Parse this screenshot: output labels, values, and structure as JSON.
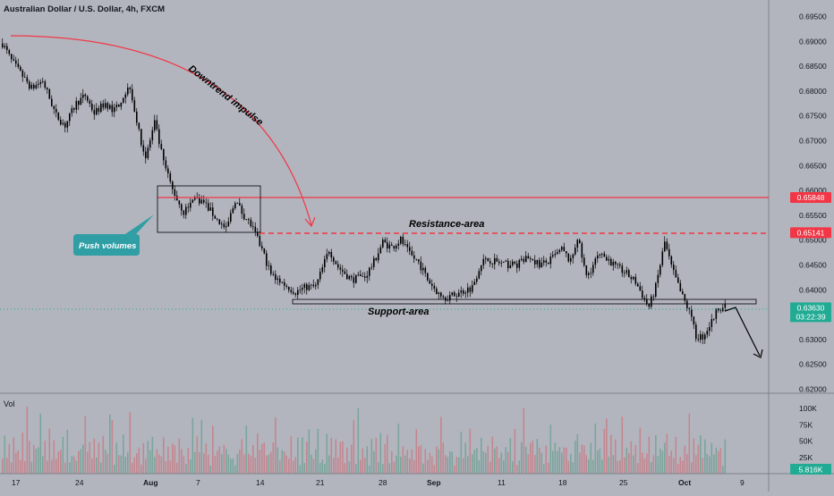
{
  "header": {
    "symbol_title": "Australian Dollar / U.S. Dollar, 4h, FXCM"
  },
  "volume_panel": {
    "label": "Vol",
    "current_value": "5.816K"
  },
  "price_axis": {
    "ticks": [
      "0.69500",
      "0.69000",
      "0.68500",
      "0.68000",
      "0.67500",
      "0.67000",
      "0.66500",
      "0.66000",
      "0.65500",
      "0.65000",
      "0.64500",
      "0.64000",
      "0.63500",
      "0.63000",
      "0.62500",
      "0.62000"
    ],
    "tick_values": [
      0.695,
      0.69,
      0.685,
      0.68,
      0.675,
      0.67,
      0.665,
      0.66,
      0.655,
      0.65,
      0.645,
      0.64,
      0.635,
      0.63,
      0.625,
      0.62
    ],
    "range": [
      0.6195,
      0.6965
    ],
    "badges": [
      {
        "label": "0.65848",
        "value": 0.65848,
        "color": "#f23645"
      },
      {
        "label": "0.65141",
        "value": 0.65141,
        "color": "#f23645"
      },
      {
        "label": "0.63630",
        "value": 0.6363,
        "color": "#22ab94",
        "sublabel": "03:22:39"
      }
    ]
  },
  "volume_axis": {
    "ticks": [
      "100K",
      "75K",
      "50K",
      "25K"
    ],
    "tick_values": [
      100,
      75,
      50,
      25
    ],
    "max": 107
  },
  "time_axis": {
    "labels": [
      "17",
      "24",
      "Aug",
      "7",
      "14",
      "21",
      "28",
      "Sep",
      "11",
      "18",
      "25",
      "Oct",
      "9"
    ],
    "bold": [
      "Aug",
      "Sep",
      "Oct"
    ]
  },
  "annotations": {
    "downtrend": "Downtrend impulse",
    "resistance": "Resistance-area",
    "support": "Support-area",
    "push": "Push volumes"
  },
  "colors": {
    "background": "#b2b5be",
    "up": "#22ab94",
    "down": "#f23645",
    "candle": "#000000",
    "level_line": "#f23645",
    "callout": "#2f9ea5",
    "vol_up": "#7aa59c",
    "vol_down": "#c4868f"
  },
  "chart_data": {
    "type": "candlestick",
    "title": "Australian Dollar / U.S. Dollar, 4h, FXCM",
    "x_labels": [
      "17",
      "24",
      "Aug",
      "7",
      "14",
      "21",
      "28",
      "Sep",
      "11",
      "18",
      "25",
      "Oct",
      "9"
    ],
    "price_range": [
      0.62,
      0.695
    ],
    "levels": {
      "resistance_solid": 0.65848,
      "resistance_dashed": 0.65141,
      "support": 0.6381,
      "last": 0.6363
    },
    "path_anchors": [
      [
        0,
        0.6895
      ],
      [
        4,
        0.686
      ],
      [
        8,
        0.6835
      ],
      [
        13,
        0.6805
      ],
      [
        18,
        0.682
      ],
      [
        24,
        0.675
      ],
      [
        28,
        0.673
      ],
      [
        33,
        0.6775
      ],
      [
        37,
        0.679
      ],
      [
        41,
        0.6755
      ],
      [
        46,
        0.6775
      ],
      [
        50,
        0.676
      ],
      [
        54,
        0.679
      ],
      [
        57,
        0.681
      ],
      [
        61,
        0.6715
      ],
      [
        64,
        0.6665
      ],
      [
        68,
        0.6735
      ],
      [
        72,
        0.6655
      ],
      [
        76,
        0.66
      ],
      [
        81,
        0.6555
      ],
      [
        86,
        0.6585
      ],
      [
        90,
        0.6575
      ],
      [
        96,
        0.654
      ],
      [
        100,
        0.652
      ],
      [
        104,
        0.658
      ],
      [
        107,
        0.6555
      ],
      [
        111,
        0.653
      ],
      [
        116,
        0.648
      ],
      [
        120,
        0.643
      ],
      [
        126,
        0.641
      ],
      [
        131,
        0.6395
      ],
      [
        136,
        0.6405
      ],
      [
        140,
        0.6405
      ],
      [
        146,
        0.648
      ],
      [
        150,
        0.6445
      ],
      [
        156,
        0.642
      ],
      [
        162,
        0.6425
      ],
      [
        166,
        0.6455
      ],
      [
        170,
        0.6495
      ],
      [
        174,
        0.6485
      ],
      [
        178,
        0.65
      ],
      [
        182,
        0.647
      ],
      [
        186,
        0.6455
      ],
      [
        190,
        0.642
      ],
      [
        196,
        0.6385
      ],
      [
        200,
        0.6385
      ],
      [
        205,
        0.6395
      ],
      [
        210,
        0.6405
      ],
      [
        214,
        0.6455
      ],
      [
        218,
        0.646
      ],
      [
        224,
        0.645
      ],
      [
        230,
        0.645
      ],
      [
        236,
        0.6465
      ],
      [
        240,
        0.645
      ],
      [
        244,
        0.6455
      ],
      [
        250,
        0.648
      ],
      [
        254,
        0.6455
      ],
      [
        257,
        0.6505
      ],
      [
        261,
        0.6425
      ],
      [
        266,
        0.6465
      ],
      [
        270,
        0.6465
      ],
      [
        274,
        0.6445
      ],
      [
        278,
        0.6435
      ],
      [
        283,
        0.6415
      ],
      [
        287,
        0.638
      ],
      [
        289,
        0.6365
      ],
      [
        292,
        0.6405
      ],
      [
        296,
        0.6495
      ],
      [
        299,
        0.6445
      ],
      [
        303,
        0.6395
      ],
      [
        307,
        0.6355
      ],
      [
        310,
        0.6305
      ],
      [
        313,
        0.6305
      ],
      [
        317,
        0.6335
      ],
      [
        320,
        0.6365
      ],
      [
        323,
        0.6363
      ]
    ],
    "volume_pattern": [
      32,
      48,
      22,
      38,
      18,
      55,
      30,
      42,
      26,
      60,
      24,
      35,
      44,
      20,
      52,
      28,
      36,
      66,
      25,
      40
    ]
  }
}
